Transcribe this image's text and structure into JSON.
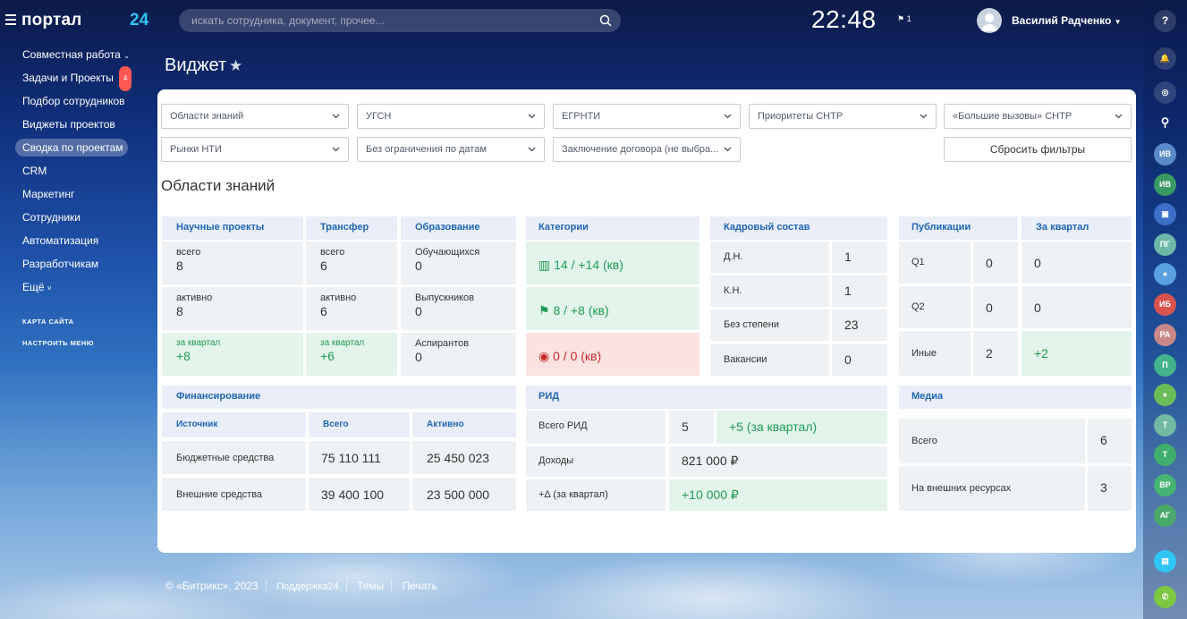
{
  "app": {
    "logo": "портал",
    "logo_num": "24",
    "clock": "22:48",
    "flag_count": "1",
    "user": "Василий Радченко"
  },
  "search": {
    "placeholder": "искать сотрудника, документ, прочее..."
  },
  "sidebar": {
    "items": [
      {
        "label": "Совместная работа"
      },
      {
        "label": "Задачи и Проекты",
        "badge": "4"
      },
      {
        "label": "Подбор сотрудников"
      },
      {
        "label": "Виджеты проектов"
      },
      {
        "label": "Сводка по проектам"
      },
      {
        "label": "CRM"
      },
      {
        "label": "Маркетинг"
      },
      {
        "label": "Сотрудники"
      },
      {
        "label": "Автоматизация"
      },
      {
        "label": "Разработчикам"
      },
      {
        "label": "Ещё"
      }
    ],
    "sitemap": "КАРТА САЙТА",
    "configure": "НАСТРОИТЬ МЕНЮ"
  },
  "rightbar": {
    "avatars": [
      "ИВ",
      "ИВ",
      "",
      "ПГ",
      "",
      "ИБ",
      "РА",
      "П",
      "",
      "Т",
      "Т",
      "ВР",
      "АГ"
    ]
  },
  "page": {
    "title": "Виджет",
    "section": "Области знаний"
  },
  "filters": {
    "f1": "Области знаний",
    "f2": "УГСН",
    "f3": "ЕГРНТИ",
    "f4": "Приоритеты СНТР",
    "f5": "«Большие вызовы» СНТР",
    "f6": "Рынки НТИ",
    "f7": "Без ограничения по датам",
    "f8": "Заключение договора (не выбра...",
    "reset": "Сбросить фильтры"
  },
  "science": {
    "h": "Научные проекты",
    "total_l": "всего",
    "total": "8",
    "active_l": "активно",
    "active": "8",
    "q_l": "за квартал",
    "q": "+8"
  },
  "transfer": {
    "h": "Трансфер",
    "total_l": "всего",
    "total": "6",
    "active_l": "активно",
    "active": "6",
    "q_l": "за квартал",
    "q": "+6"
  },
  "education": {
    "h": "Образование",
    "a_l": "Обучающихся",
    "a": "0",
    "b_l": "Выпускников",
    "b": "0",
    "c_l": "Аспирантов",
    "c": "0"
  },
  "categories": {
    "h": "Категории",
    "green1": "14 / +14 (кв)",
    "green2": "8 / +8 (кв)",
    "red": "0 / 0 (кв)"
  },
  "staff": {
    "h": "Кадровый состав",
    "rows": [
      {
        "l": "Д.Н.",
        "v": "1"
      },
      {
        "l": "К.Н.",
        "v": "1"
      },
      {
        "l": "Без степени",
        "v": "23"
      },
      {
        "l": "Вакансии",
        "v": "0"
      }
    ]
  },
  "pubs": {
    "h": "Публикации",
    "h2": "За квартал",
    "rows": [
      {
        "l": "Q1",
        "v": "0",
        "q": "0"
      },
      {
        "l": "Q2",
        "v": "0",
        "q": "0"
      },
      {
        "l": "Иные",
        "v": "2",
        "q": "+2"
      }
    ]
  },
  "finance": {
    "h": "Финансирование",
    "c1": "Источник",
    "c2": "Всего",
    "c3": "Активно",
    "rows": [
      {
        "l": "Бюджетные средства",
        "t": "75 110 111",
        "a": "25 450 023"
      },
      {
        "l": "Внешние средства",
        "t": "39 400 100",
        "a": "23 500 000"
      }
    ]
  },
  "rid": {
    "h": "РИД",
    "r1l": "Всего РИД",
    "r1v": "5",
    "r1q": "+5 (за квартал)",
    "r2l": "Доходы",
    "r2v": "821 000 ₽",
    "r3l": "+Δ (за квартал)",
    "r3v": "+10 000 ₽"
  },
  "media": {
    "h": "Медиа",
    "r1l": "Всего",
    "r1v": "6",
    "r2l": "На внешних ресурсах",
    "r2v": "3"
  },
  "footer": {
    "copy": "© «Битрикс», 2023",
    "support": "Поддержка24",
    "themes": "Темы",
    "print": "Печать"
  }
}
